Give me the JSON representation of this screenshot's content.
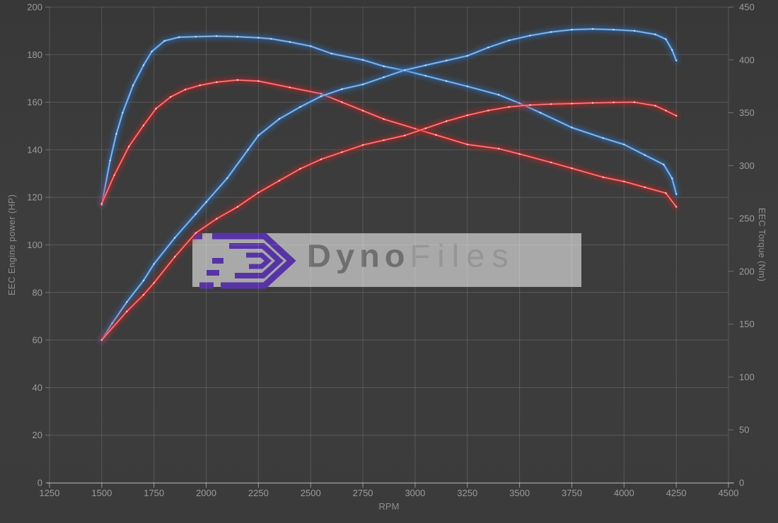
{
  "watermark": {
    "brand_part1": "Dyno",
    "brand_part2": "Files",
    "logo_color": "#5733a6",
    "box_color": "#c8c8c8"
  },
  "chart_data": {
    "type": "line",
    "xlabel": "RPM",
    "ylabel_left": "EEC Engine power (HP)",
    "ylabel_right": "EEC Torque (Nm)",
    "grid": true,
    "x_range": [
      1250,
      4500
    ],
    "x_ticks": [
      1250,
      1500,
      1750,
      2000,
      2250,
      2500,
      2750,
      3000,
      3250,
      3500,
      3750,
      4000,
      4250,
      4500
    ],
    "left_range": [
      0,
      200
    ],
    "left_ticks": [
      0,
      20,
      40,
      60,
      80,
      100,
      120,
      140,
      160,
      180,
      200
    ],
    "right_range": [
      0,
      450
    ],
    "right_ticks": [
      0,
      50,
      100,
      150,
      200,
      250,
      300,
      350,
      400,
      450
    ],
    "series": [
      {
        "name": "torque-blue",
        "axis": "right",
        "unit": "Nm",
        "color": "#4a90d8",
        "glow": "#2d6cb5",
        "core": "#aaccf0",
        "points": [
          [
            1500,
            263
          ],
          [
            1540,
            305
          ],
          [
            1570,
            330
          ],
          [
            1600,
            350
          ],
          [
            1650,
            376
          ],
          [
            1700,
            395
          ],
          [
            1740,
            408
          ],
          [
            1800,
            418
          ],
          [
            1870,
            421.5
          ],
          [
            1950,
            422
          ],
          [
            2050,
            422.5
          ],
          [
            2150,
            422
          ],
          [
            2250,
            421
          ],
          [
            2310,
            420
          ],
          [
            2400,
            417
          ],
          [
            2500,
            413
          ],
          [
            2600,
            406
          ],
          [
            2750,
            400
          ],
          [
            2850,
            394
          ],
          [
            2950,
            390
          ],
          [
            3050,
            385
          ],
          [
            3150,
            380
          ],
          [
            3250,
            375
          ],
          [
            3400,
            367
          ],
          [
            3500,
            359
          ],
          [
            3600,
            350
          ],
          [
            3750,
            336
          ],
          [
            3900,
            326
          ],
          [
            4000,
            320
          ],
          [
            4100,
            310
          ],
          [
            4190,
            301
          ],
          [
            4230,
            288
          ],
          [
            4250,
            273
          ]
        ]
      },
      {
        "name": "torque-red",
        "axis": "right",
        "unit": "Nm",
        "color": "#dd3535",
        "glow": "#b52828",
        "core": "#ffaaaa",
        "points": [
          [
            1500,
            264
          ],
          [
            1560,
            291
          ],
          [
            1630,
            318
          ],
          [
            1700,
            338
          ],
          [
            1760,
            354
          ],
          [
            1830,
            365
          ],
          [
            1900,
            372
          ],
          [
            1970,
            376
          ],
          [
            2050,
            379
          ],
          [
            2150,
            381
          ],
          [
            2250,
            380
          ],
          [
            2400,
            374
          ],
          [
            2550,
            368
          ],
          [
            2650,
            360
          ],
          [
            2750,
            352
          ],
          [
            2850,
            344
          ],
          [
            3000,
            335
          ],
          [
            3100,
            329
          ],
          [
            3250,
            320
          ],
          [
            3400,
            316
          ],
          [
            3500,
            311
          ],
          [
            3650,
            303
          ],
          [
            3750,
            297.5
          ],
          [
            3900,
            289
          ],
          [
            4000,
            285
          ],
          [
            4100,
            279.5
          ],
          [
            4200,
            274
          ],
          [
            4250,
            261
          ]
        ]
      },
      {
        "name": "power-blue",
        "axis": "left",
        "unit": "HP",
        "color": "#4a90d8",
        "glow": "#2d6cb5",
        "core": "#aaccf0",
        "points": [
          [
            1500,
            60
          ],
          [
            1550,
            67
          ],
          [
            1620,
            76
          ],
          [
            1700,
            85
          ],
          [
            1750,
            92
          ],
          [
            1850,
            103
          ],
          [
            1950,
            113
          ],
          [
            2000,
            118
          ],
          [
            2100,
            128
          ],
          [
            2200,
            140
          ],
          [
            2250,
            146
          ],
          [
            2350,
            153
          ],
          [
            2450,
            158
          ],
          [
            2550,
            162.5
          ],
          [
            2650,
            165.5
          ],
          [
            2750,
            167.5
          ],
          [
            2850,
            170.5
          ],
          [
            2950,
            173.5
          ],
          [
            3050,
            175.5
          ],
          [
            3150,
            177.5
          ],
          [
            3250,
            179.5
          ],
          [
            3350,
            183
          ],
          [
            3450,
            186
          ],
          [
            3550,
            188
          ],
          [
            3650,
            189.5
          ],
          [
            3750,
            190.5
          ],
          [
            3850,
            190.8
          ],
          [
            3950,
            190.5
          ],
          [
            4050,
            190
          ],
          [
            4150,
            188.5
          ],
          [
            4200,
            186.5
          ],
          [
            4230,
            182
          ],
          [
            4250,
            177.5
          ]
        ]
      },
      {
        "name": "power-red",
        "axis": "left",
        "unit": "HP",
        "color": "#dd3535",
        "glow": "#b52828",
        "core": "#ffaaaa",
        "points": [
          [
            1500,
            60
          ],
          [
            1620,
            72
          ],
          [
            1700,
            79
          ],
          [
            1750,
            84
          ],
          [
            1850,
            95
          ],
          [
            1950,
            105
          ],
          [
            2050,
            111
          ],
          [
            2150,
            116
          ],
          [
            2250,
            122
          ],
          [
            2350,
            127
          ],
          [
            2450,
            132
          ],
          [
            2550,
            136
          ],
          [
            2650,
            139
          ],
          [
            2750,
            142
          ],
          [
            2850,
            144
          ],
          [
            2950,
            146
          ],
          [
            3050,
            149
          ],
          [
            3150,
            152
          ],
          [
            3250,
            154.5
          ],
          [
            3350,
            156.5
          ],
          [
            3450,
            158
          ],
          [
            3550,
            158.8
          ],
          [
            3650,
            159.2
          ],
          [
            3750,
            159.4
          ],
          [
            3850,
            159.7
          ],
          [
            3950,
            159.9
          ],
          [
            4050,
            160
          ],
          [
            4150,
            158.5
          ],
          [
            4200,
            156.5
          ],
          [
            4250,
            154.3
          ]
        ]
      }
    ]
  }
}
